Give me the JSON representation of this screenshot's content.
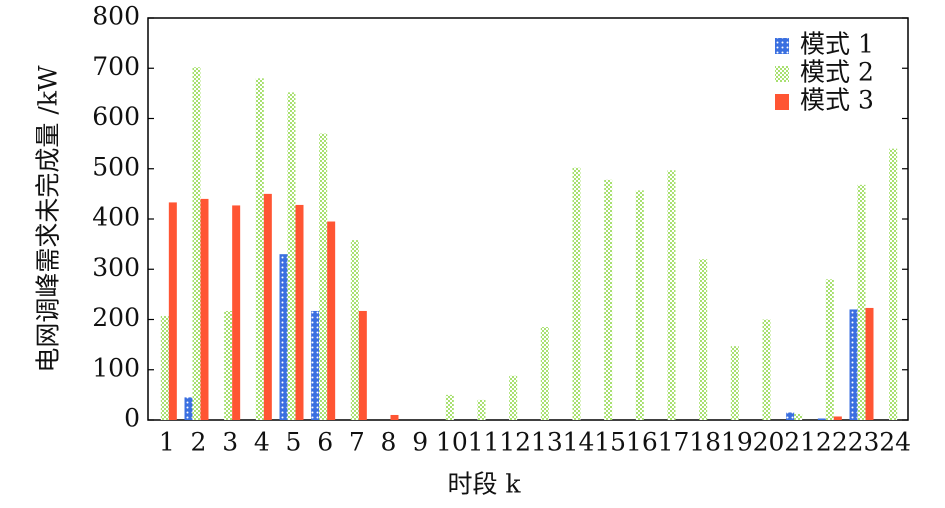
{
  "chart_data": {
    "type": "bar",
    "xlabel": "时段 k",
    "ylabel": "电网调峰需求未完成量 /kW",
    "categories": [
      "1",
      "2",
      "3",
      "4",
      "5",
      "6",
      "7",
      "8",
      "9",
      "10",
      "11",
      "12",
      "13",
      "14",
      "15",
      "16",
      "17",
      "18",
      "19",
      "20",
      "21",
      "22",
      "23",
      "24"
    ],
    "series": [
      {
        "name": "模式 1",
        "color": "#3a6fe0",
        "values": [
          0,
          45,
          0,
          0,
          330,
          217,
          0,
          0,
          0,
          0,
          0,
          0,
          0,
          0,
          0,
          0,
          0,
          0,
          0,
          0,
          15,
          3,
          220,
          0
        ]
      },
      {
        "name": "模式 2",
        "color": "#a8e070",
        "values": [
          207,
          702,
          217,
          680,
          652,
          570,
          358,
          0,
          0,
          50,
          40,
          88,
          185,
          502,
          478,
          457,
          497,
          320,
          147,
          200,
          12,
          280,
          468,
          540
        ]
      },
      {
        "name": "模式 3",
        "color": "#ff5533",
        "values": [
          433,
          440,
          427,
          450,
          428,
          395,
          217,
          10,
          0,
          0,
          0,
          0,
          0,
          0,
          0,
          0,
          0,
          0,
          0,
          0,
          0,
          7,
          223,
          0
        ]
      }
    ],
    "ylim": [
      0,
      800
    ],
    "yticks": [
      0,
      100,
      200,
      300,
      400,
      500,
      600,
      700,
      800
    ],
    "legend": "upper right"
  }
}
